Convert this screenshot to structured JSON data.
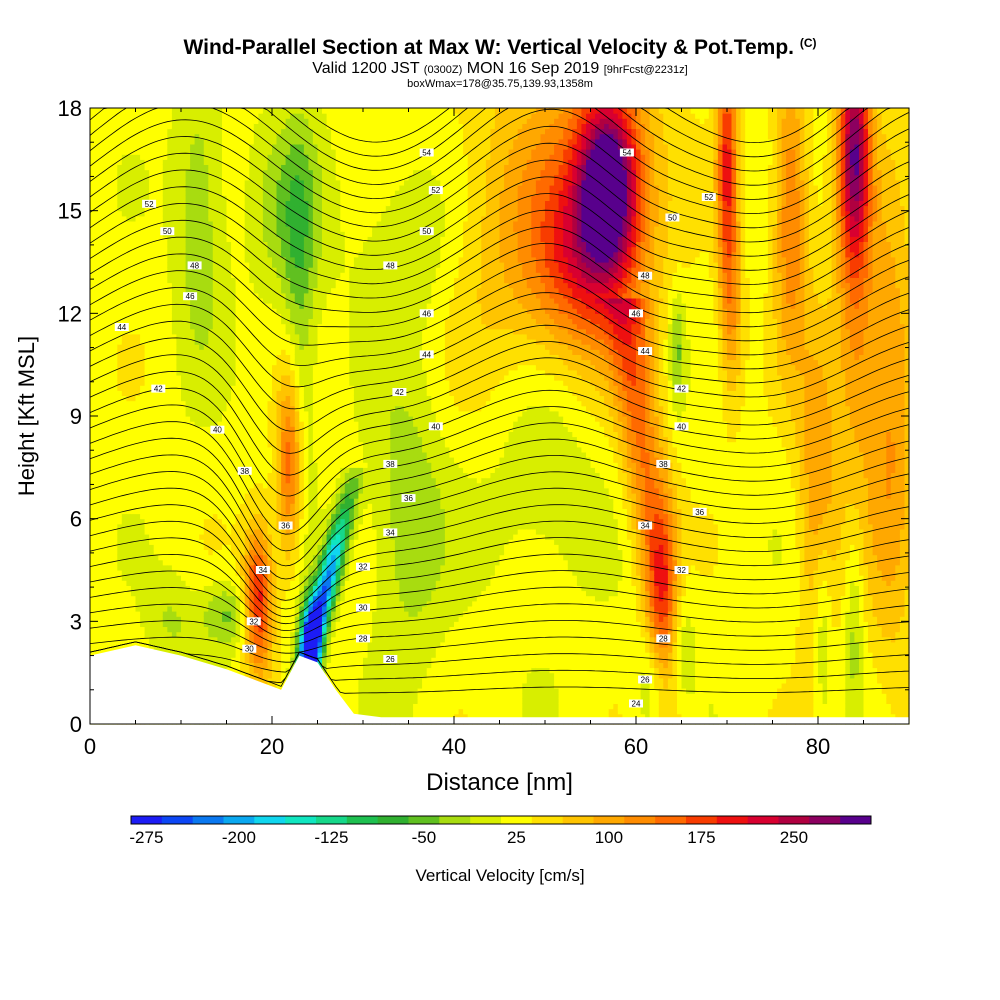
{
  "chart_data": {
    "type": "heatmap",
    "title": {
      "main": "Wind-Parallel Section at Max W: Vertical Velocity & Pot.Temp.",
      "main_units": "(C)",
      "valid_prefix": "Valid 1200 JST",
      "valid_z": "(0300Z)",
      "valid_date": "MON 16 Sep 2019",
      "forecast": "[9hrFcst@2231z]",
      "subtitle": "boxWmax=178@35.75,139.93,1358m"
    },
    "xlabel": "Distance [nm]",
    "ylabel": "Height [Kft MSL]",
    "xlim": [
      0,
      90
    ],
    "ylim": [
      0,
      18
    ],
    "x_ticks": [
      "0",
      "20",
      "40",
      "60",
      "80"
    ],
    "y_ticks": [
      "0",
      "3",
      "6",
      "9",
      "12",
      "15",
      "18"
    ],
    "colorbar": {
      "label": "Vertical Velocity [cm/s]",
      "tick_labels": [
        "-275",
        "-200",
        "-125",
        "-50",
        "25",
        "100",
        "175",
        "250"
      ],
      "colors": [
        "#1c1cf5",
        "#0c46f5",
        "#0a78f0",
        "#0aa8f0",
        "#10d6ee",
        "#10e6c0",
        "#16d88a",
        "#1ec050",
        "#30b030",
        "#60c020",
        "#a8dc10",
        "#d8ee00",
        "#ffff00",
        "#ffe000",
        "#ffc400",
        "#ffa800",
        "#ff8c00",
        "#ff6a00",
        "#f83c00",
        "#ee1010",
        "#d80030",
        "#b00040",
        "#8c0060",
        "#58008c"
      ]
    },
    "terrain": [
      [
        0,
        2
      ],
      [
        5,
        2.3
      ],
      [
        10,
        2
      ],
      [
        15,
        1.6
      ],
      [
        18,
        1.3
      ],
      [
        21,
        1
      ],
      [
        22,
        1.5
      ],
      [
        23,
        2
      ],
      [
        25,
        1.8
      ],
      [
        27,
        1
      ],
      [
        29,
        0.3
      ],
      [
        32,
        0.2
      ],
      [
        90,
        0.2
      ]
    ],
    "theta_labels": {
      "left": [
        "52",
        "50",
        "48",
        "46",
        "44",
        "42",
        "40",
        "38",
        "36",
        "34",
        "32",
        "30"
      ],
      "mid": [
        "54",
        "52",
        "50",
        "48",
        "46",
        "44",
        "42",
        "40",
        "38",
        "36",
        "34",
        "32",
        "30",
        "28",
        "26"
      ],
      "right": [
        "54",
        "52",
        "50",
        "48",
        "46",
        "44",
        "42",
        "40",
        "38",
        "36",
        "34",
        "32",
        "28",
        "26",
        "24"
      ]
    }
  }
}
